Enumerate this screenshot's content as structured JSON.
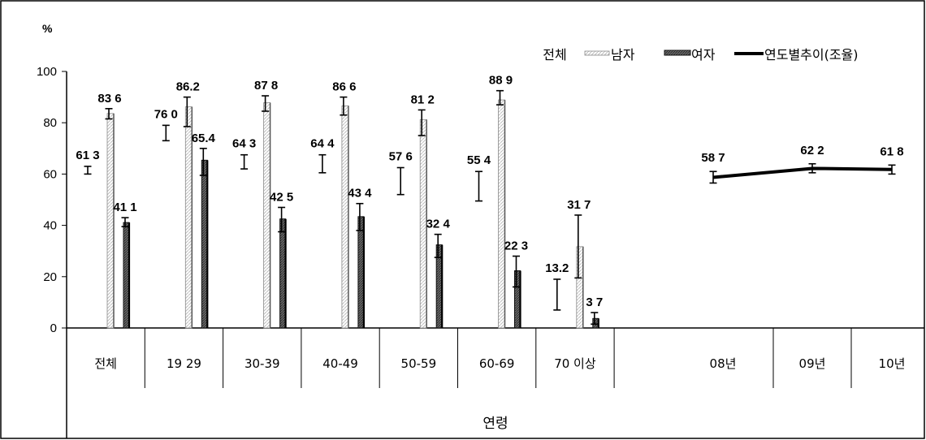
{
  "chart_data": {
    "type": "bar",
    "ylabel": "%",
    "xlabel": "연령",
    "ylim": [
      0,
      100
    ],
    "yticks": [
      "0",
      "20",
      "40",
      "60",
      "80",
      "100"
    ],
    "legend": {
      "title": "전체",
      "items": [
        "남자",
        "여자",
        "연도별추이(조율)"
      ],
      "position": "top-right"
    },
    "categories": [
      "전체",
      "19 29",
      "30-39",
      "40-49",
      "50-59",
      "60-69",
      "70 이상"
    ],
    "series": [
      {
        "name": "전체",
        "style": "errorbar",
        "values": [
          61.3,
          76.0,
          64.3,
          64.4,
          57.6,
          55.4,
          13.2
        ],
        "labels": [
          "61 3",
          "76 0",
          "64 3",
          "64 4",
          "57 6",
          "55 4",
          "13.2"
        ],
        "err_low": [
          60.0,
          73.0,
          62.0,
          60.5,
          52.0,
          49.5,
          7.0
        ],
        "err_high": [
          63.0,
          79.0,
          67.5,
          67.5,
          62.5,
          61.0,
          19.0
        ]
      },
      {
        "name": "남자",
        "style": "bar-light",
        "values": [
          83.6,
          86.2,
          87.8,
          86.6,
          81.2,
          88.9,
          31.7
        ],
        "labels": [
          "83 6",
          "86.2",
          "87 8",
          "86 6",
          "81 2",
          "88 9",
          "31 7"
        ],
        "err_low": [
          81.5,
          78.5,
          84.5,
          83.0,
          75.0,
          87.0,
          19.5
        ],
        "err_high": [
          85.5,
          90.0,
          90.5,
          90.0,
          85.0,
          92.5,
          44.0
        ]
      },
      {
        "name": "여자",
        "style": "bar-dark",
        "values": [
          41.1,
          65.4,
          42.5,
          43.4,
          32.4,
          22.3,
          3.7
        ],
        "labels": [
          "41 1",
          "65.4",
          "42 5",
          "43 4",
          "32 4",
          "22 3",
          "3 7"
        ],
        "err_low": [
          39.5,
          59.5,
          37.5,
          38.0,
          27.5,
          16.0,
          1.5
        ],
        "err_high": [
          43.0,
          70.0,
          47.0,
          48.5,
          36.5,
          28.0,
          6.0
        ]
      }
    ],
    "trend": {
      "name": "연도별추이(조율)",
      "categories": [
        "08년",
        "09년",
        "10년"
      ],
      "values": [
        58.7,
        62.2,
        61.8
      ],
      "labels": [
        "58 7",
        "62 2",
        "61 8"
      ],
      "err_low": [
        56.5,
        60.5,
        60.0
      ],
      "err_high": [
        61.0,
        64.0,
        63.5
      ]
    }
  }
}
